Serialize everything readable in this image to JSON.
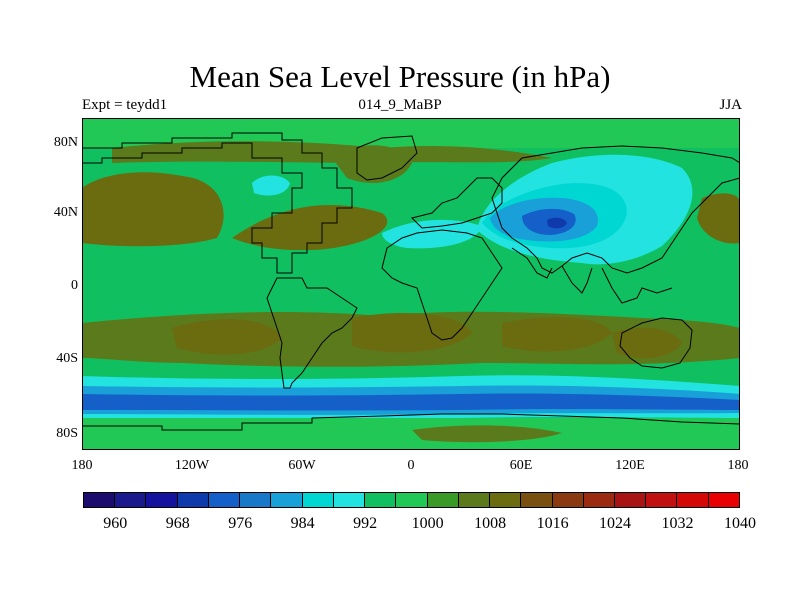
{
  "title": "Mean Sea Level Pressure (in hPa)",
  "left_label": "Expt = teydd1",
  "center_label": "014_9_MaBP",
  "right_label": "JJA",
  "lat_ticks": [
    "80N",
    "40N",
    "0",
    "40S",
    "80S"
  ],
  "lon_ticks": [
    "180",
    "120W",
    "60W",
    "0",
    "60E",
    "120E",
    "180"
  ],
  "colorbar": {
    "labels": [
      "960",
      "968",
      "976",
      "984",
      "992",
      "1000",
      "1008",
      "1016",
      "1024",
      "1032",
      "1040"
    ],
    "colors": [
      "#1c0c6e",
      "#1a1a8c",
      "#13139e",
      "#0f3aac",
      "#1460c8",
      "#1a78c8",
      "#1aa0d8",
      "#00d7d2",
      "#22e3e0",
      "#10c060",
      "#22c855",
      "#3a9a28",
      "#5a7a1c",
      "#6b6b10",
      "#7a5010",
      "#8a3a10",
      "#9a2a10",
      "#a81414",
      "#c01010",
      "#d50808",
      "#e80000"
    ]
  },
  "colors": {
    "green_light": "#10c060",
    "green_mid": "#3a9a28",
    "olive_dark": "#6b6b10",
    "olive": "#5a7a1c",
    "cyan": "#00d7d2",
    "cyan_light": "#22e3e0",
    "blue": "#1460c8",
    "blue_dark": "#0f3aac"
  }
}
